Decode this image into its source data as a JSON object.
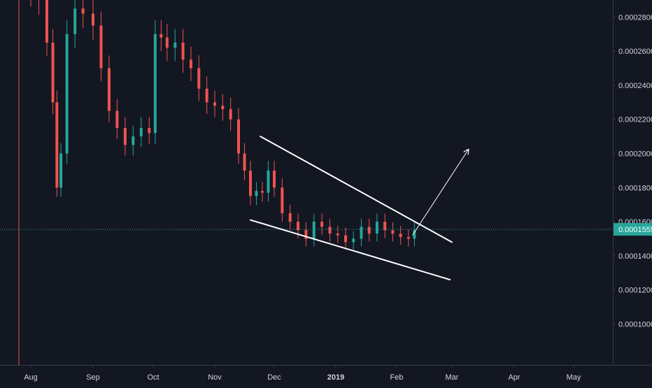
{
  "colors": {
    "background": "#131722",
    "up": "#26a69a",
    "down": "#ef5350",
    "axis_text": "#d1d4dc",
    "axis_line": "#363a45",
    "price_line": "#26a69a",
    "trendline": "#ffffff",
    "vline": "#ef5350"
  },
  "chart_data": {
    "type": "candlestick",
    "title": "",
    "xlabel": "",
    "ylabel": "",
    "grid": false,
    "x_ticks": [
      "Aug",
      "Sep",
      "Oct",
      "Nov",
      "Dec",
      "2019",
      "Feb",
      "Mar",
      "Apr",
      "May"
    ],
    "y_ticks": [
      "0.0002800",
      "0.0002600",
      "0.0002400",
      "0.0002200",
      "0.0002000",
      "0.0001800",
      "0.0001600",
      "0.0001400",
      "0.0001200",
      "0.0001000"
    ],
    "y_range": [
      7.6e-05,
      0.00029
    ],
    "current_price": "0.0001555",
    "series": [
      {
        "x": [
          "2018-08-01",
          "2018-08-05",
          "2018-08-09",
          "2018-08-12",
          "2018-08-14",
          "2018-08-16",
          "2018-08-19",
          "2018-08-23",
          "2018-08-27",
          "2018-09-01",
          "2018-09-05",
          "2018-09-09",
          "2018-09-13",
          "2018-09-17",
          "2018-09-21",
          "2018-09-25",
          "2018-09-29",
          "2018-10-02",
          "2018-10-05",
          "2018-10-08",
          "2018-10-12",
          "2018-10-16",
          "2018-10-20",
          "2018-10-24",
          "2018-10-28",
          "2018-11-01",
          "2018-11-05",
          "2018-11-09",
          "2018-11-13",
          "2018-11-16",
          "2018-11-19",
          "2018-11-22",
          "2018-11-25",
          "2018-11-28",
          "2018-12-01",
          "2018-12-05",
          "2018-12-09",
          "2018-12-13",
          "2018-12-17",
          "2018-12-21",
          "2018-12-25",
          "2018-12-29",
          "2019-01-02",
          "2019-01-06",
          "2019-01-10",
          "2019-01-14",
          "2019-01-18",
          "2019-01-22",
          "2019-01-26",
          "2019-01-30",
          "2019-02-03",
          "2019-02-07",
          "2019-02-10"
        ],
        "close": [
          0.000295,
          0.00029,
          0.000265,
          0.00023,
          0.00018,
          0.0002,
          0.00027,
          0.000285,
          0.000282,
          0.000275,
          0.00025,
          0.000225,
          0.000215,
          0.000205,
          0.00021,
          0.000215,
          0.000212,
          0.00027,
          0.000268,
          0.000262,
          0.000265,
          0.000255,
          0.00025,
          0.000238,
          0.00023,
          0.000228,
          0.000226,
          0.00022,
          0.0002,
          0.00019,
          0.000175,
          0.000178,
          0.000177,
          0.00019,
          0.00018,
          0.000165,
          0.00016,
          0.000155,
          0.00015,
          0.00016,
          0.000157,
          0.000153,
          0.000152,
          0.000148,
          0.00015,
          0.000157,
          0.000153,
          0.00016,
          0.000155,
          0.000153,
          0.000151,
          0.00015,
          0.000155
        ]
      }
    ],
    "annotations": [
      {
        "type": "trendline",
        "from": [
          "2018-11-24",
          0.00021
        ],
        "to": [
          "2019-02-29",
          0.000148
        ]
      },
      {
        "type": "trendline",
        "from": [
          "2018-11-19",
          0.000161
        ],
        "to": [
          "2019-02-28",
          0.000126
        ]
      },
      {
        "type": "arrow",
        "from": [
          "2019-02-09",
          0.000152
        ],
        "to": [
          "2019-03-09",
          0.000202
        ]
      }
    ]
  }
}
